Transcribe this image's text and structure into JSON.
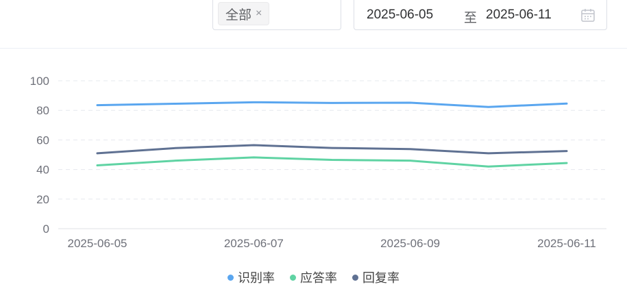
{
  "filters": {
    "tag_label": "全部",
    "tag_close": "×",
    "date_start": "2025-06-05",
    "date_separator": "至",
    "date_end": "2025-06-11"
  },
  "colors": {
    "识别率": "#5aa6ef",
    "应答率": "#5fd3a3",
    "回复率": "#5f7192",
    "grid": "#e6e8ee",
    "axis": "#dfe1e6"
  },
  "chart_data": {
    "type": "line",
    "x": [
      "2025-06-05",
      "2025-06-06",
      "2025-06-07",
      "2025-06-08",
      "2025-06-09",
      "2025-06-10",
      "2025-06-11"
    ],
    "x_tick_labels": [
      "2025-06-05",
      "2025-06-07",
      "2025-06-09",
      "2025-06-11"
    ],
    "ylim": [
      0,
      100
    ],
    "y_ticks": [
      0,
      20,
      40,
      60,
      80,
      100
    ],
    "grid": true,
    "legend_position": "bottom-center",
    "series": [
      {
        "name": "识别率",
        "values": [
          83.5,
          84.5,
          85.5,
          85.0,
          85.2,
          82.3,
          84.6
        ]
      },
      {
        "name": "应答率",
        "values": [
          42.8,
          46.0,
          48.2,
          46.5,
          46.0,
          42.0,
          44.4
        ]
      },
      {
        "name": "回复率",
        "values": [
          51.0,
          54.5,
          56.5,
          54.6,
          53.8,
          51.0,
          52.5
        ]
      }
    ]
  }
}
